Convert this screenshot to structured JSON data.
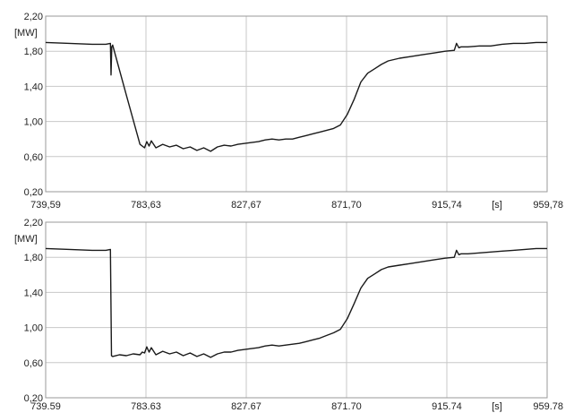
{
  "chart_data": [
    {
      "type": "line",
      "title": "",
      "ylabel": "[MW]",
      "xlabel": "[s]",
      "ylim": [
        0.2,
        2.2
      ],
      "xlim": [
        739.59,
        959.78
      ],
      "y_ticks": [
        0.2,
        0.6,
        1.0,
        1.4,
        1.8,
        2.2
      ],
      "y_tick_labels": [
        "0,20",
        "0,60",
        "1,00",
        "1,40",
        "1,80",
        "2,20"
      ],
      "x_ticks": [
        739.59,
        783.63,
        827.67,
        871.7,
        915.74,
        959.78
      ],
      "x_tick_labels": [
        "739,59",
        "783,63",
        "827,67",
        "871,70",
        "915,74",
        "959,78"
      ],
      "grid": true,
      "series": [
        {
          "x": [
            739.59,
            750,
            760,
            766,
            768,
            768.3,
            768.6,
            769,
            775,
            781,
            783,
            784,
            785,
            786,
            788,
            791,
            794,
            797,
            800,
            803,
            806,
            809,
            812,
            815,
            818,
            821,
            824,
            827,
            830,
            833,
            836,
            839,
            842,
            845,
            848,
            851,
            854,
            857,
            860,
            863,
            866,
            869,
            872,
            875,
            878,
            881,
            884,
            887,
            890,
            895,
            900,
            905,
            910,
            915,
            919,
            920,
            921,
            922,
            925,
            930,
            935,
            940,
            945,
            950,
            955,
            959.78
          ],
          "y": [
            1.9,
            1.89,
            1.88,
            1.88,
            1.89,
            1.53,
            1.85,
            1.87,
            1.3,
            0.74,
            0.7,
            0.77,
            0.72,
            0.78,
            0.7,
            0.74,
            0.71,
            0.73,
            0.69,
            0.71,
            0.67,
            0.7,
            0.66,
            0.71,
            0.73,
            0.72,
            0.74,
            0.75,
            0.76,
            0.77,
            0.79,
            0.8,
            0.79,
            0.8,
            0.8,
            0.82,
            0.84,
            0.86,
            0.88,
            0.9,
            0.92,
            0.96,
            1.08,
            1.25,
            1.45,
            1.55,
            1.6,
            1.65,
            1.69,
            1.72,
            1.74,
            1.76,
            1.78,
            1.8,
            1.81,
            1.89,
            1.84,
            1.85,
            1.85,
            1.86,
            1.86,
            1.88,
            1.89,
            1.89,
            1.9,
            1.9
          ]
        }
      ]
    },
    {
      "type": "line",
      "title": "",
      "ylabel": "[MW]",
      "xlabel": "[s]",
      "ylim": [
        0.2,
        2.2
      ],
      "xlim": [
        739.59,
        959.78
      ],
      "y_ticks": [
        0.2,
        0.6,
        1.0,
        1.4,
        1.8,
        2.2
      ],
      "y_tick_labels": [
        "0,20",
        "0,60",
        "1,00",
        "1,40",
        "1,80",
        "2,20"
      ],
      "x_ticks": [
        739.59,
        783.63,
        827.67,
        871.7,
        915.74,
        959.78
      ],
      "x_tick_labels": [
        "739.59",
        "783.63",
        "827.67",
        "871.70",
        "915.74",
        "959.78"
      ],
      "grid": true,
      "series": [
        {
          "x": [
            739.59,
            750,
            760,
            766,
            768,
            768.5,
            769,
            772,
            775,
            778,
            781,
            782,
            783,
            784,
            785,
            786,
            788,
            791,
            794,
            797,
            800,
            803,
            806,
            809,
            812,
            815,
            818,
            821,
            824,
            827,
            830,
            833,
            836,
            839,
            842,
            845,
            848,
            851,
            854,
            857,
            860,
            863,
            866,
            869,
            872,
            875,
            878,
            881,
            884,
            887,
            890,
            895,
            900,
            905,
            910,
            915,
            919,
            920,
            921,
            922,
            925,
            930,
            935,
            940,
            945,
            950,
            955,
            959.78
          ],
          "y": [
            1.9,
            1.89,
            1.88,
            1.88,
            1.89,
            0.68,
            0.67,
            0.69,
            0.68,
            0.7,
            0.69,
            0.72,
            0.71,
            0.78,
            0.72,
            0.77,
            0.69,
            0.73,
            0.7,
            0.72,
            0.68,
            0.71,
            0.67,
            0.7,
            0.66,
            0.7,
            0.72,
            0.72,
            0.74,
            0.75,
            0.76,
            0.77,
            0.79,
            0.8,
            0.79,
            0.8,
            0.81,
            0.82,
            0.84,
            0.86,
            0.88,
            0.91,
            0.94,
            0.98,
            1.1,
            1.27,
            1.45,
            1.56,
            1.61,
            1.66,
            1.69,
            1.71,
            1.73,
            1.75,
            1.77,
            1.79,
            1.8,
            1.88,
            1.83,
            1.84,
            1.84,
            1.85,
            1.86,
            1.87,
            1.88,
            1.89,
            1.9,
            1.9
          ]
        }
      ]
    }
  ]
}
